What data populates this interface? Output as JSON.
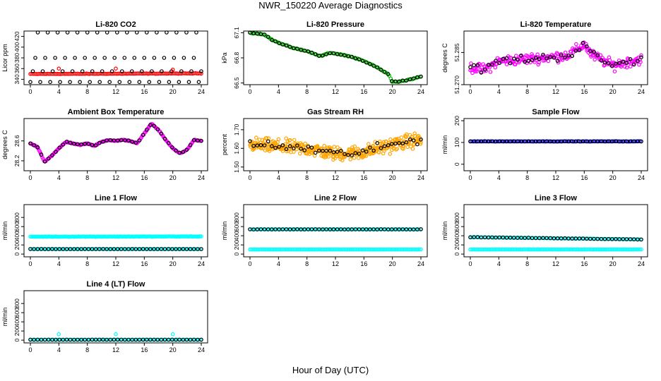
{
  "title": "NWR_150220  Average Diagnostics",
  "x_axis_label": "Hour of Day (UTC)",
  "chart_data": [
    {
      "type": "scatter",
      "title": "Li-820 CO2",
      "ylabel": "Licor ppm",
      "xlim": [
        0,
        24
      ],
      "ylim": [
        330,
        430
      ],
      "xticks": [
        "0",
        "4",
        "8",
        "12",
        "16",
        "20",
        "24"
      ],
      "yticks": [
        "340",
        "360",
        "380",
        "400",
        "420"
      ],
      "series": [
        {
          "color": "#ff0000",
          "pattern": "flat",
          "y0": 350,
          "y1": 351,
          "noise": 0.6,
          "n": 120
        },
        {
          "color": "#000000",
          "pattern": "levels",
          "levels": [
            335,
            355,
            380,
            428
          ],
          "n": 70
        },
        {
          "color": "#ff0000",
          "pattern": "points",
          "x": [
            4,
            12,
            20
          ],
          "y": [
            360,
            360,
            358
          ]
        }
      ]
    },
    {
      "type": "scatter",
      "title": "Li-820 Pressure",
      "ylabel": "kPa",
      "xlim": [
        0,
        24
      ],
      "ylim": [
        66.48,
        67.12
      ],
      "xticks": [
        "0",
        "4",
        "8",
        "12",
        "16",
        "20",
        "24"
      ],
      "yticks": [
        "66.5",
        "66.8",
        "67.1"
      ],
      "series": [
        {
          "color": "#00cc00",
          "pattern": "curve",
          "px": [
            0,
            2,
            3,
            4,
            6,
            8,
            10,
            11,
            12,
            14,
            16,
            18,
            19.5,
            20,
            22,
            24
          ],
          "py": [
            67.1,
            67.08,
            67.02,
            66.98,
            66.92,
            66.88,
            66.82,
            66.86,
            66.85,
            66.82,
            66.76,
            66.68,
            66.6,
            66.51,
            66.53,
            66.58
          ],
          "noise": 0.008,
          "n": 120
        },
        {
          "color": "#000000",
          "pattern": "curve",
          "px": [
            0,
            2,
            3,
            4,
            6,
            8,
            10,
            11,
            12,
            14,
            16,
            18,
            19.5,
            20,
            22,
            24
          ],
          "py": [
            67.1,
            67.08,
            67.02,
            66.98,
            66.92,
            66.88,
            66.82,
            66.86,
            66.85,
            66.82,
            66.76,
            66.68,
            66.6,
            66.51,
            66.53,
            66.58
          ],
          "noise": 0.006,
          "n": 48
        }
      ]
    },
    {
      "type": "scatter",
      "title": "Li-820 Temperature",
      "ylabel": "degrees C",
      "xlim": [
        0,
        24
      ],
      "ylim": [
        51.27,
        51.295
      ],
      "xticks": [
        "0",
        "4",
        "8",
        "12",
        "16",
        "20",
        "24"
      ],
      "yticks": [
        "51.270",
        "51.285"
      ],
      "series": [
        {
          "color": "#ff00ff",
          "pattern": "curve",
          "px": [
            0,
            2,
            4,
            8,
            12,
            14,
            16,
            17,
            20,
            24
          ],
          "py": [
            51.278,
            51.277,
            51.281,
            51.282,
            51.283,
            51.284,
            51.289,
            51.284,
            51.279,
            51.282
          ],
          "noise": 0.0035,
          "n": 240
        },
        {
          "color": "#000000",
          "pattern": "curve",
          "px": [
            0,
            2,
            4,
            8,
            12,
            14,
            16,
            17,
            20,
            24
          ],
          "py": [
            51.278,
            51.277,
            51.281,
            51.282,
            51.283,
            51.284,
            51.289,
            51.284,
            51.279,
            51.282
          ],
          "noise": 0.003,
          "n": 48
        }
      ]
    },
    {
      "type": "scatter",
      "title": "Ambient Box Temperature",
      "ylabel": "degrees C",
      "xlim": [
        0,
        24
      ],
      "ylim": [
        28.0,
        29.05
      ],
      "xticks": [
        "0",
        "4",
        "8",
        "12",
        "16",
        "20",
        "24"
      ],
      "yticks": [
        "28.2",
        "28.6"
      ],
      "series": [
        {
          "color": "#ff00ff",
          "pattern": "curve",
          "px": [
            0,
            1,
            2,
            3,
            4,
            5,
            6,
            7,
            8,
            9,
            10,
            11,
            12,
            13,
            14,
            15,
            16,
            17,
            18,
            19,
            20,
            21,
            22,
            23,
            24
          ],
          "py": [
            28.55,
            28.48,
            28.18,
            28.3,
            28.45,
            28.58,
            28.55,
            28.52,
            28.55,
            28.5,
            28.58,
            28.62,
            28.6,
            28.62,
            28.6,
            28.55,
            28.75,
            28.95,
            28.82,
            28.62,
            28.45,
            28.35,
            28.42,
            28.62,
            28.6
          ],
          "noise": 0.012,
          "n": 200
        },
        {
          "color": "#000000",
          "pattern": "curve",
          "px": [
            0,
            1,
            2,
            3,
            4,
            5,
            6,
            7,
            8,
            9,
            10,
            11,
            12,
            13,
            14,
            15,
            16,
            17,
            18,
            19,
            20,
            21,
            22,
            23,
            24
          ],
          "py": [
            28.55,
            28.48,
            28.18,
            28.3,
            28.45,
            28.58,
            28.55,
            28.52,
            28.55,
            28.5,
            28.58,
            28.62,
            28.6,
            28.62,
            28.6,
            28.55,
            28.75,
            28.95,
            28.82,
            28.62,
            28.45,
            28.35,
            28.42,
            28.62,
            28.6
          ],
          "noise": 0.01,
          "n": 48
        }
      ]
    },
    {
      "type": "scatter",
      "title": "Gas Stream RH",
      "ylabel": "percent",
      "xlim": [
        0,
        24
      ],
      "ylim": [
        1.48,
        1.76
      ],
      "xticks": [
        "0",
        "4",
        "8",
        "12",
        "16",
        "20",
        "24"
      ],
      "yticks": [
        "1.50",
        "1.60",
        "1.70"
      ],
      "series": [
        {
          "color": "#ffa500",
          "pattern": "curve",
          "px": [
            0,
            4,
            8,
            12,
            16,
            20,
            24
          ],
          "py": [
            1.62,
            1.61,
            1.6,
            1.57,
            1.58,
            1.62,
            1.65
          ],
          "noise": 0.055,
          "n": 360
        },
        {
          "color": "#000000",
          "pattern": "curve",
          "px": [
            0,
            4,
            8,
            12,
            16,
            20,
            24
          ],
          "py": [
            1.62,
            1.61,
            1.6,
            1.57,
            1.58,
            1.62,
            1.65
          ],
          "noise": 0.035,
          "n": 48
        }
      ]
    },
    {
      "type": "scatter",
      "title": "Sample Flow",
      "ylabel": "ml/min",
      "xlim": [
        0,
        24
      ],
      "ylim": [
        -30,
        210
      ],
      "xticks": [
        "0",
        "4",
        "8",
        "12",
        "16",
        "20",
        "24"
      ],
      "yticks": [
        "0",
        "100",
        "200"
      ],
      "series": [
        {
          "color": "#0000ff",
          "pattern": "flat",
          "y0": 105,
          "y1": 105,
          "noise": 1,
          "n": 120
        },
        {
          "color": "#000000",
          "pattern": "flat",
          "y0": 105,
          "y1": 105,
          "noise": 0.5,
          "n": 48
        }
      ]
    },
    {
      "type": "scatter",
      "title": "Line 1 Flow",
      "ylabel": "ml/min",
      "xlim": [
        0,
        24
      ],
      "ylim": [
        -60,
        1080
      ],
      "xticks": [
        "0",
        "4",
        "8",
        "12",
        "16",
        "20",
        "24"
      ],
      "yticks": [
        "0",
        "200",
        "400",
        "600",
        "800"
      ],
      "series": [
        {
          "color": "#00ffff",
          "pattern": "flat",
          "y0": 380,
          "y1": 385,
          "noise": 8,
          "n": 150
        },
        {
          "color": "#00ffff",
          "pattern": "flat",
          "y0": 110,
          "y1": 110,
          "noise": 2,
          "n": 100
        },
        {
          "color": "#000000",
          "pattern": "flat",
          "y0": 110,
          "y1": 110,
          "noise": 1,
          "n": 48
        }
      ]
    },
    {
      "type": "scatter",
      "title": "Line 2 Flow",
      "ylabel": "ml/min",
      "xlim": [
        0,
        24
      ],
      "ylim": [
        -60,
        1080
      ],
      "xticks": [
        "0",
        "4",
        "8",
        "12",
        "16",
        "20",
        "24"
      ],
      "yticks": [
        "0",
        "200",
        "400",
        "600",
        "800"
      ],
      "series": [
        {
          "color": "#00ffff",
          "pattern": "flat",
          "y0": 540,
          "y1": 540,
          "noise": 4,
          "n": 100
        },
        {
          "color": "#00ffff",
          "pattern": "flat",
          "y0": 100,
          "y1": 100,
          "noise": 2,
          "n": 130
        },
        {
          "color": "#000000",
          "pattern": "flat",
          "y0": 540,
          "y1": 540,
          "noise": 3,
          "n": 48
        }
      ]
    },
    {
      "type": "scatter",
      "title": "Line 3 Flow",
      "ylabel": "ml/min",
      "xlim": [
        0,
        24
      ],
      "ylim": [
        -60,
        1080
      ],
      "xticks": [
        "0",
        "4",
        "8",
        "12",
        "16",
        "20",
        "24"
      ],
      "yticks": [
        "0",
        "200",
        "400",
        "600",
        "800"
      ],
      "series": [
        {
          "color": "#00ffff",
          "pattern": "flat",
          "y0": 370,
          "y1": 320,
          "noise": 6,
          "n": 110
        },
        {
          "color": "#00ffff",
          "pattern": "flat",
          "y0": 100,
          "y1": 100,
          "noise": 2,
          "n": 130
        },
        {
          "color": "#000000",
          "pattern": "flat",
          "y0": 370,
          "y1": 320,
          "noise": 5,
          "n": 48
        }
      ]
    },
    {
      "type": "scatter",
      "title": "Line 4 (LT) Flow",
      "ylabel": "ml/min",
      "xlim": [
        0,
        24
      ],
      "ylim": [
        -60,
        1080
      ],
      "xticks": [
        "0",
        "4",
        "8",
        "12",
        "16",
        "20",
        "24"
      ],
      "yticks": [
        "0",
        "200",
        "400",
        "600",
        "800"
      ],
      "series": [
        {
          "color": "#00ffff",
          "pattern": "flat",
          "y0": 10,
          "y1": 10,
          "noise": 2,
          "n": 120
        },
        {
          "color": "#00ffff",
          "pattern": "points",
          "x": [
            4,
            12,
            20
          ],
          "y": [
            130,
            130,
            130
          ]
        },
        {
          "color": "#000000",
          "pattern": "flat",
          "y0": 10,
          "y1": 10,
          "noise": 1,
          "n": 48
        }
      ]
    }
  ]
}
